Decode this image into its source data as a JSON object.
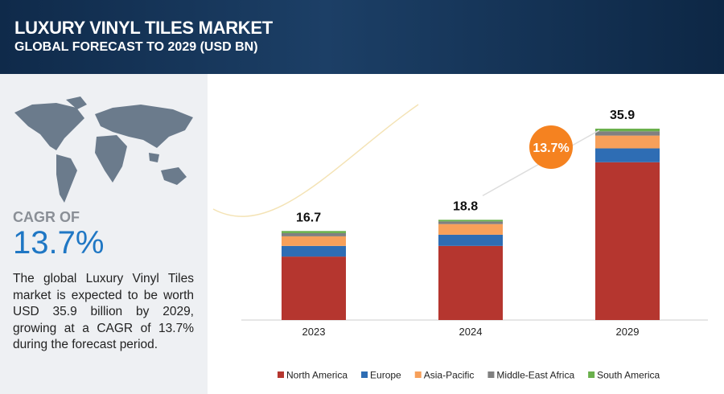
{
  "header": {
    "title": "LUXURY VINYL TILES MARKET",
    "subtitle": "GLOBAL FORECAST TO 2029 (USD BN)"
  },
  "sidebar": {
    "cagr_label": "CAGR OF",
    "cagr_value": "13.7%",
    "description": "The global Luxury Vinyl Tiles market is expected to be worth USD 35.9 billion by 2029, growing at a CAGR of 13.7% during the forecast period."
  },
  "chart_data": {
    "type": "stacked_bar",
    "categories": [
      "2023",
      "2024",
      "2029"
    ],
    "series": [
      {
        "name": "North America",
        "color": "#b5362f",
        "values": [
          11.9,
          13.9,
          29.6
        ]
      },
      {
        "name": "Europe",
        "color": "#2e6db4",
        "values": [
          2.0,
          2.1,
          2.6
        ]
      },
      {
        "name": "Asia-Pacific",
        "color": "#f7a05a",
        "values": [
          1.8,
          2.0,
          2.4
        ]
      },
      {
        "name": "Middle-East Africa",
        "color": "#808080",
        "values": [
          0.6,
          0.5,
          0.8
        ]
      },
      {
        "name": "South America",
        "color": "#6ab04c",
        "values": [
          0.4,
          0.3,
          0.5
        ]
      }
    ],
    "totals": [
      16.7,
      18.8,
      35.9
    ],
    "annotation": "13.7%"
  }
}
